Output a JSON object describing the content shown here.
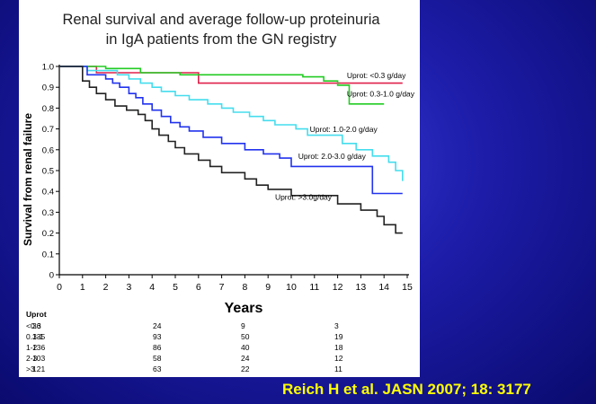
{
  "chart_data": {
    "type": "line",
    "title": [
      "Renal survival and average follow-up proteinuria",
      "in IgA patients from the GN registry"
    ],
    "xlabel": "Years",
    "ylabel": "Survival from renal failure",
    "xlim": [
      0,
      15
    ],
    "ylim": [
      0,
      1.0
    ],
    "xticks": [
      "0",
      "1",
      "2",
      "3",
      "4",
      "5",
      "6",
      "7",
      "8",
      "9",
      "10",
      "11",
      "12",
      "13",
      "14",
      "15"
    ],
    "yticks": [
      "0",
      "0.1",
      "0.2",
      "0.3",
      "0.4",
      "0.5",
      "0.6",
      "0.7",
      "0.8",
      "0.9",
      "1.0"
    ],
    "step": true,
    "series": [
      {
        "name": "Uprot: <0.3 g/day",
        "color": "#e0204a",
        "points": [
          [
            0,
            1.0
          ],
          [
            1.6,
            1.0
          ],
          [
            1.6,
            0.97
          ],
          [
            6.0,
            0.97
          ],
          [
            6.0,
            0.92
          ],
          [
            14.8,
            0.92
          ]
        ]
      },
      {
        "name": "Uprot: 0.3-1.0 g/day",
        "color": "#22cc22",
        "points": [
          [
            0,
            1.0
          ],
          [
            2.0,
            1.0
          ],
          [
            2.0,
            0.99
          ],
          [
            3.5,
            0.99
          ],
          [
            3.5,
            0.97
          ],
          [
            5.2,
            0.97
          ],
          [
            5.2,
            0.96
          ],
          [
            10.5,
            0.96
          ],
          [
            10.5,
            0.95
          ],
          [
            11.4,
            0.95
          ],
          [
            11.4,
            0.93
          ],
          [
            12.0,
            0.93
          ],
          [
            12.0,
            0.91
          ],
          [
            12.5,
            0.91
          ],
          [
            12.5,
            0.82
          ],
          [
            14.0,
            0.82
          ]
        ]
      },
      {
        "name": "Uprot: 1.0-2.0 g/day",
        "color": "#44ddee",
        "points": [
          [
            0,
            1.0
          ],
          [
            1.2,
            1.0
          ],
          [
            1.2,
            0.98
          ],
          [
            2.5,
            0.98
          ],
          [
            2.5,
            0.96
          ],
          [
            3.0,
            0.96
          ],
          [
            3.0,
            0.94
          ],
          [
            3.5,
            0.94
          ],
          [
            3.5,
            0.92
          ],
          [
            4.0,
            0.92
          ],
          [
            4.0,
            0.9
          ],
          [
            4.4,
            0.9
          ],
          [
            4.4,
            0.88
          ],
          [
            5.0,
            0.88
          ],
          [
            5.0,
            0.86
          ],
          [
            5.6,
            0.86
          ],
          [
            5.6,
            0.84
          ],
          [
            6.4,
            0.84
          ],
          [
            6.4,
            0.82
          ],
          [
            7.0,
            0.82
          ],
          [
            7.0,
            0.8
          ],
          [
            7.5,
            0.8
          ],
          [
            7.5,
            0.78
          ],
          [
            8.2,
            0.78
          ],
          [
            8.2,
            0.76
          ],
          [
            8.8,
            0.76
          ],
          [
            8.8,
            0.74
          ],
          [
            9.3,
            0.74
          ],
          [
            9.3,
            0.72
          ],
          [
            10.2,
            0.72
          ],
          [
            10.2,
            0.7
          ],
          [
            10.7,
            0.7
          ],
          [
            10.7,
            0.67
          ],
          [
            12.2,
            0.67
          ],
          [
            12.2,
            0.63
          ],
          [
            12.8,
            0.63
          ],
          [
            12.8,
            0.6
          ],
          [
            13.5,
            0.6
          ],
          [
            13.5,
            0.57
          ],
          [
            14.2,
            0.57
          ],
          [
            14.2,
            0.54
          ],
          [
            14.5,
            0.54
          ],
          [
            14.5,
            0.5
          ],
          [
            14.8,
            0.5
          ],
          [
            14.8,
            0.45
          ]
        ]
      },
      {
        "name": "Uprot: 2.0-3.0 g/day",
        "color": "#2233ee",
        "points": [
          [
            0,
            1.0
          ],
          [
            1.2,
            1.0
          ],
          [
            1.2,
            0.96
          ],
          [
            2.0,
            0.96
          ],
          [
            2.0,
            0.94
          ],
          [
            2.3,
            0.94
          ],
          [
            2.3,
            0.92
          ],
          [
            2.6,
            0.92
          ],
          [
            2.6,
            0.9
          ],
          [
            3.0,
            0.9
          ],
          [
            3.0,
            0.87
          ],
          [
            3.3,
            0.87
          ],
          [
            3.3,
            0.85
          ],
          [
            3.6,
            0.85
          ],
          [
            3.6,
            0.82
          ],
          [
            4.0,
            0.82
          ],
          [
            4.0,
            0.79
          ],
          [
            4.4,
            0.79
          ],
          [
            4.4,
            0.76
          ],
          [
            4.8,
            0.76
          ],
          [
            4.8,
            0.73
          ],
          [
            5.2,
            0.73
          ],
          [
            5.2,
            0.71
          ],
          [
            5.6,
            0.71
          ],
          [
            5.6,
            0.69
          ],
          [
            6.2,
            0.69
          ],
          [
            6.2,
            0.66
          ],
          [
            7.0,
            0.66
          ],
          [
            7.0,
            0.63
          ],
          [
            8.0,
            0.63
          ],
          [
            8.0,
            0.6
          ],
          [
            8.8,
            0.6
          ],
          [
            8.8,
            0.58
          ],
          [
            9.5,
            0.58
          ],
          [
            9.5,
            0.56
          ],
          [
            10.0,
            0.56
          ],
          [
            10.0,
            0.52
          ],
          [
            13.5,
            0.52
          ],
          [
            13.5,
            0.39
          ],
          [
            14.8,
            0.39
          ]
        ]
      },
      {
        "name": "Uprot: >3.0g/day",
        "color": "#222222",
        "points": [
          [
            0,
            1.0
          ],
          [
            1.0,
            1.0
          ],
          [
            1.0,
            0.93
          ],
          [
            1.3,
            0.93
          ],
          [
            1.3,
            0.9
          ],
          [
            1.6,
            0.9
          ],
          [
            1.6,
            0.87
          ],
          [
            2.0,
            0.87
          ],
          [
            2.0,
            0.84
          ],
          [
            2.4,
            0.84
          ],
          [
            2.4,
            0.81
          ],
          [
            2.9,
            0.81
          ],
          [
            2.9,
            0.79
          ],
          [
            3.4,
            0.79
          ],
          [
            3.4,
            0.77
          ],
          [
            3.7,
            0.77
          ],
          [
            3.7,
            0.74
          ],
          [
            4.0,
            0.74
          ],
          [
            4.0,
            0.7
          ],
          [
            4.3,
            0.7
          ],
          [
            4.3,
            0.67
          ],
          [
            4.7,
            0.67
          ],
          [
            4.7,
            0.64
          ],
          [
            5.0,
            0.64
          ],
          [
            5.0,
            0.61
          ],
          [
            5.4,
            0.61
          ],
          [
            5.4,
            0.58
          ],
          [
            6.0,
            0.58
          ],
          [
            6.0,
            0.55
          ],
          [
            6.5,
            0.55
          ],
          [
            6.5,
            0.52
          ],
          [
            7.0,
            0.52
          ],
          [
            7.0,
            0.49
          ],
          [
            8.0,
            0.49
          ],
          [
            8.0,
            0.46
          ],
          [
            8.5,
            0.46
          ],
          [
            8.5,
            0.43
          ],
          [
            9.0,
            0.43
          ],
          [
            9.0,
            0.41
          ],
          [
            10.0,
            0.41
          ],
          [
            10.0,
            0.38
          ],
          [
            12.0,
            0.38
          ],
          [
            12.0,
            0.34
          ],
          [
            13.0,
            0.34
          ],
          [
            13.0,
            0.31
          ],
          [
            13.7,
            0.31
          ],
          [
            13.7,
            0.28
          ],
          [
            14.0,
            0.28
          ],
          [
            14.0,
            0.24
          ],
          [
            14.5,
            0.24
          ],
          [
            14.5,
            0.2
          ],
          [
            14.8,
            0.2
          ]
        ]
      }
    ],
    "annotations": [
      {
        "text": "Uprot: <0.3 g/day",
        "x": 12.4,
        "y": 0.945
      },
      {
        "text": "Uprot: 0.3-1.0 g/day",
        "x": 12.4,
        "y": 0.855
      },
      {
        "text": "Uprot: 1.0-2.0 g/day",
        "x": 10.8,
        "y": 0.685
      },
      {
        "text": "Uprot: 2.0-3.0 g/day",
        "x": 10.3,
        "y": 0.555
      },
      {
        "text": "Uprot: >3.0g/day",
        "x": 9.3,
        "y": 0.36
      }
    ],
    "risk_table": {
      "header": "Uprot",
      "rows": [
        {
          "label": "<0.3",
          "values": [
            "36",
            "24",
            "9",
            "3"
          ]
        },
        {
          "label": "0.3-1",
          "values": [
            "135",
            "93",
            "50",
            "19"
          ]
        },
        {
          "label": "1-2",
          "values": [
            "136",
            "86",
            "40",
            "18"
          ]
        },
        {
          "label": "2-3",
          "values": [
            "103",
            "58",
            "24",
            "12"
          ]
        },
        {
          "label": ">3",
          "values": [
            "121",
            "63",
            "22",
            "11"
          ]
        }
      ]
    }
  },
  "citation": "Reich H et al. JASN 2007; 18: 3177"
}
